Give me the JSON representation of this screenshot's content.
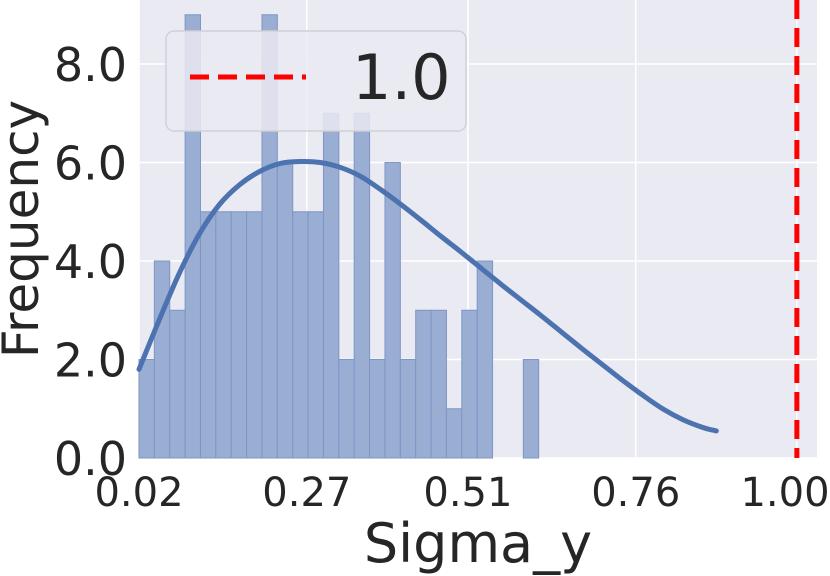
{
  "chart_data": {
    "type": "histogram",
    "xlabel": "Sigma_y",
    "ylabel": "Frequency",
    "xlim": [
      0.02,
      1.03
    ],
    "ylim": [
      0,
      9.3
    ],
    "x_ticks": [
      0.02,
      0.27,
      0.51,
      0.76,
      1.0
    ],
    "x_tick_labels": [
      "0.02",
      "0.27",
      "0.51",
      "0.76",
      "1.00"
    ],
    "y_ticks": [
      0,
      2,
      4,
      6,
      8
    ],
    "y_tick_labels": [
      "0.0",
      "2.0",
      "4.0",
      "6.0",
      "8.0"
    ],
    "grid": true,
    "background": "#eaeaf2",
    "bar_color": "#9aadd2",
    "bar_edge_color": "#7e95c6",
    "kde_color": "#4c72b0",
    "ref_line_color": "#ff0000",
    "bins": {
      "start": 0.02,
      "width": 0.0229,
      "counts": [
        2,
        4,
        3,
        9,
        5,
        5,
        5,
        5,
        9,
        6,
        5,
        5,
        7,
        2,
        7,
        2,
        6,
        2,
        3,
        3,
        1,
        3,
        4,
        0,
        0,
        2
      ]
    },
    "kde": {
      "x": [
        0.02,
        0.05,
        0.08,
        0.11,
        0.14,
        0.17,
        0.2,
        0.23,
        0.26,
        0.29,
        0.32,
        0.35,
        0.38,
        0.41,
        0.44,
        0.47,
        0.5,
        0.53,
        0.56,
        0.59,
        0.62,
        0.65,
        0.68,
        0.71,
        0.74,
        0.77,
        0.8,
        0.83,
        0.86,
        0.88
      ],
      "y": [
        1.8,
        2.8,
        3.75,
        4.55,
        5.15,
        5.55,
        5.82,
        5.98,
        6.02,
        6.0,
        5.9,
        5.72,
        5.45,
        5.15,
        4.83,
        4.5,
        4.18,
        3.85,
        3.52,
        3.2,
        2.88,
        2.55,
        2.22,
        1.9,
        1.58,
        1.28,
        1.0,
        0.78,
        0.62,
        0.55
      ]
    },
    "ref_line": {
      "x": 1.0,
      "label": "1.0",
      "style": "dashed"
    },
    "legend": {
      "placement": "top-left",
      "entries": [
        "1.0"
      ]
    }
  }
}
